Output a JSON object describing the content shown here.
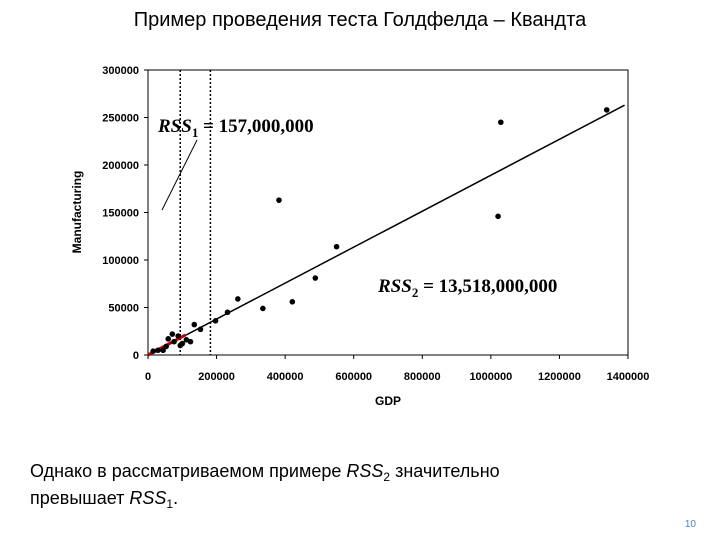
{
  "title": "Пример проведения теста Голдфелда – Квандта",
  "chart_data": {
    "type": "scatter",
    "x": [
      1338000,
      1029000,
      1021000,
      382000,
      550000,
      488000,
      421000,
      335000,
      262000,
      232000,
      197000,
      153000,
      135000,
      124000,
      112000,
      100000,
      88000,
      71000,
      59000,
      53000,
      44000,
      29000,
      15000,
      94000,
      76000
    ],
    "y": [
      258000,
      245000,
      146000,
      163000,
      114000,
      81000,
      56000,
      49000,
      59000,
      45000,
      36000,
      27000,
      32000,
      14000,
      16000,
      12000,
      20000,
      22000,
      17000,
      9000,
      5000,
      5000,
      4000,
      10000,
      14000
    ],
    "color": "#000000",
    "xlim": [
      0,
      1400000
    ],
    "ylim": [
      0,
      300000
    ],
    "xticks": [
      0,
      200000,
      400000,
      600000,
      800000,
      1000000,
      1200000,
      1400000
    ],
    "yticks": [
      0,
      50000,
      100000,
      150000,
      200000,
      250000,
      300000
    ],
    "xlabel": "GDP",
    "ylabel": "Manufacturing",
    "lines": [
      {
        "color": "#000000",
        "x": [
          0,
          1390000
        ],
        "y": [
          0,
          263000
        ]
      },
      {
        "color": "#c00000",
        "x": [
          0,
          109000
        ],
        "y": [
          0,
          21000
        ]
      }
    ],
    "dividers": [
      94000,
      182000
    ],
    "annotations": [
      {
        "main": "RSS",
        "sub": "1",
        "rest": " = 157,000,000"
      },
      {
        "main": "RSS",
        "sub": "2",
        "rest": " = 13,518,000,000"
      }
    ]
  },
  "footer": {
    "lines": [
      [
        {
          "text": "Однако в рассматриваемом примере ",
          "style": "normal"
        },
        {
          "text": "RSS",
          "style": "italic"
        },
        {
          "text": "2",
          "style": "sub"
        },
        {
          "text": " значительно",
          "style": "normal"
        }
      ],
      [
        {
          "text": "превышает ",
          "style": "normal"
        },
        {
          "text": "RSS",
          "style": "italic"
        },
        {
          "text": "1",
          "style": "sub"
        },
        {
          "text": ".",
          "style": "normal"
        }
      ]
    ]
  },
  "page_number": "10"
}
